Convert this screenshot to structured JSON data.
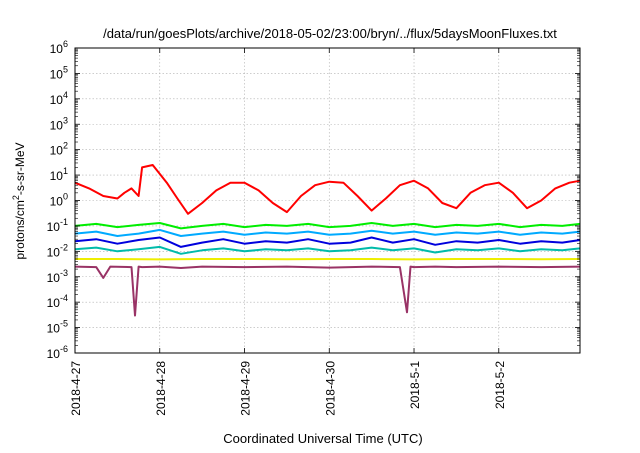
{
  "chart_data": {
    "type": "line",
    "title": "/data/run/goesPlots/archive/2018-05-02/23:00/bryn/../flux/5daysMoonFluxes.txt",
    "xlabel": "Coordinated Universal Time (UTC)",
    "ylabel": {
      "prefix": "protons/cm",
      "sup": "2",
      "suffix": "-s-sr-MeV"
    },
    "yscale": "log",
    "ylim": [
      1e-06,
      1000000.0
    ],
    "y_tick_exponents": [
      -6,
      -5,
      -4,
      -3,
      -2,
      -1,
      0,
      1,
      2,
      3,
      4,
      5,
      6
    ],
    "xlim": [
      "2018-04-27T00:00",
      "2018-05-02T23:00"
    ],
    "x_tick_labels": [
      "2018-4-27",
      "2018-4-28",
      "2018-4-29",
      "2018-4-30",
      "2018-5-1",
      "2018-5-2"
    ],
    "grid": true,
    "series": [
      {
        "color": "#ff0000",
        "x": [
          "2018-04-27T00:00",
          "2018-04-27T04:00",
          "2018-04-27T08:00",
          "2018-04-27T12:00",
          "2018-04-27T14:00",
          "2018-04-27T16:00",
          "2018-04-27T18:00",
          "2018-04-27T19:00",
          "2018-04-27T22:00",
          "2018-04-28T02:00",
          "2018-04-28T05:00",
          "2018-04-28T08:00",
          "2018-04-28T12:00",
          "2018-04-28T16:00",
          "2018-04-28T20:00",
          "2018-04-29T00:00",
          "2018-04-29T04:00",
          "2018-04-29T08:00",
          "2018-04-29T12:00",
          "2018-04-29T16:00",
          "2018-04-29T20:00",
          "2018-04-30T00:00",
          "2018-04-30T04:00",
          "2018-04-30T08:00",
          "2018-04-30T12:00",
          "2018-04-30T16:00",
          "2018-04-30T20:00",
          "2018-05-01T00:00",
          "2018-05-01T04:00",
          "2018-05-01T08:00",
          "2018-05-01T12:00",
          "2018-05-01T16:00",
          "2018-05-01T20:00",
          "2018-05-02T00:00",
          "2018-05-02T04:00",
          "2018-05-02T08:00",
          "2018-05-02T12:00",
          "2018-05-02T16:00",
          "2018-05-02T20:00",
          "2018-05-02T23:00"
        ],
        "values": [
          5,
          3,
          1.5,
          1.2,
          2,
          3,
          1.5,
          20,
          25,
          5,
          1.2,
          0.3,
          0.8,
          2.5,
          5,
          5,
          2.5,
          0.8,
          0.35,
          1.5,
          4,
          5.5,
          5,
          1.5,
          0.4,
          1.2,
          4,
          6,
          3,
          0.8,
          0.5,
          2,
          4,
          5,
          2,
          0.5,
          1,
          3,
          5,
          6
        ]
      },
      {
        "color": "#00ee00",
        "x": [
          "2018-04-27T00:00",
          "2018-04-27T06:00",
          "2018-04-27T12:00",
          "2018-04-27T18:00",
          "2018-04-28T00:00",
          "2018-04-28T06:00",
          "2018-04-28T12:00",
          "2018-04-28T18:00",
          "2018-04-29T00:00",
          "2018-04-29T06:00",
          "2018-04-29T12:00",
          "2018-04-29T18:00",
          "2018-04-30T00:00",
          "2018-04-30T06:00",
          "2018-04-30T12:00",
          "2018-04-30T18:00",
          "2018-05-01T00:00",
          "2018-05-01T06:00",
          "2018-05-01T12:00",
          "2018-05-01T18:00",
          "2018-05-02T00:00",
          "2018-05-02T06:00",
          "2018-05-02T12:00",
          "2018-05-02T18:00",
          "2018-05-02T23:00"
        ],
        "values": [
          0.1,
          0.12,
          0.09,
          0.11,
          0.13,
          0.08,
          0.1,
          0.12,
          0.09,
          0.11,
          0.1,
          0.12,
          0.09,
          0.1,
          0.13,
          0.1,
          0.12,
          0.09,
          0.11,
          0.1,
          0.12,
          0.09,
          0.11,
          0.1,
          0.12
        ]
      },
      {
        "color": "#00aaff",
        "x": [
          "2018-04-27T00:00",
          "2018-04-27T06:00",
          "2018-04-27T12:00",
          "2018-04-27T18:00",
          "2018-04-28T00:00",
          "2018-04-28T06:00",
          "2018-04-28T12:00",
          "2018-04-28T18:00",
          "2018-04-29T00:00",
          "2018-04-29T06:00",
          "2018-04-29T12:00",
          "2018-04-29T18:00",
          "2018-04-30T00:00",
          "2018-04-30T06:00",
          "2018-04-30T12:00",
          "2018-04-30T18:00",
          "2018-05-01T00:00",
          "2018-05-01T06:00",
          "2018-05-01T12:00",
          "2018-05-01T18:00",
          "2018-05-02T00:00",
          "2018-05-02T06:00",
          "2018-05-02T12:00",
          "2018-05-02T18:00",
          "2018-05-02T23:00"
        ],
        "values": [
          0.05,
          0.06,
          0.04,
          0.05,
          0.07,
          0.04,
          0.05,
          0.06,
          0.045,
          0.055,
          0.05,
          0.06,
          0.045,
          0.05,
          0.065,
          0.05,
          0.06,
          0.045,
          0.055,
          0.05,
          0.06,
          0.045,
          0.055,
          0.05,
          0.06
        ]
      },
      {
        "color": "#0000dd",
        "x": [
          "2018-04-27T00:00",
          "2018-04-27T06:00",
          "2018-04-27T12:00",
          "2018-04-27T18:00",
          "2018-04-28T00:00",
          "2018-04-28T06:00",
          "2018-04-28T12:00",
          "2018-04-28T18:00",
          "2018-04-29T00:00",
          "2018-04-29T06:00",
          "2018-04-29T12:00",
          "2018-04-29T18:00",
          "2018-04-30T00:00",
          "2018-04-30T06:00",
          "2018-04-30T12:00",
          "2018-04-30T18:00",
          "2018-05-01T00:00",
          "2018-05-01T06:00",
          "2018-05-01T12:00",
          "2018-05-01T18:00",
          "2018-05-02T00:00",
          "2018-05-02T06:00",
          "2018-05-02T12:00",
          "2018-05-02T18:00",
          "2018-05-02T23:00"
        ],
        "values": [
          0.025,
          0.03,
          0.02,
          0.028,
          0.035,
          0.015,
          0.022,
          0.03,
          0.02,
          0.025,
          0.022,
          0.03,
          0.02,
          0.022,
          0.035,
          0.022,
          0.03,
          0.018,
          0.025,
          0.022,
          0.028,
          0.02,
          0.025,
          0.022,
          0.028
        ]
      },
      {
        "color": "#00bbaa",
        "x": [
          "2018-04-27T00:00",
          "2018-04-27T06:00",
          "2018-04-27T12:00",
          "2018-04-27T18:00",
          "2018-04-28T00:00",
          "2018-04-28T06:00",
          "2018-04-28T12:00",
          "2018-04-28T18:00",
          "2018-04-29T00:00",
          "2018-04-29T06:00",
          "2018-04-29T12:00",
          "2018-04-29T18:00",
          "2018-04-30T00:00",
          "2018-04-30T06:00",
          "2018-04-30T12:00",
          "2018-04-30T18:00",
          "2018-05-01T00:00",
          "2018-05-01T06:00",
          "2018-05-01T12:00",
          "2018-05-01T18:00",
          "2018-05-02T00:00",
          "2018-05-02T06:00",
          "2018-05-02T12:00",
          "2018-05-02T18:00",
          "2018-05-02T23:00"
        ],
        "values": [
          0.012,
          0.014,
          0.01,
          0.012,
          0.015,
          0.008,
          0.011,
          0.013,
          0.01,
          0.012,
          0.011,
          0.013,
          0.01,
          0.011,
          0.014,
          0.011,
          0.013,
          0.009,
          0.012,
          0.011,
          0.013,
          0.01,
          0.012,
          0.011,
          0.013
        ]
      },
      {
        "color": "#eeee00",
        "x": [
          "2018-04-27T00:00",
          "2018-04-27T12:00",
          "2018-04-28T00:00",
          "2018-04-28T12:00",
          "2018-04-29T00:00",
          "2018-04-29T12:00",
          "2018-04-30T00:00",
          "2018-04-30T12:00",
          "2018-05-01T00:00",
          "2018-05-01T12:00",
          "2018-05-02T00:00",
          "2018-05-02T12:00",
          "2018-05-02T23:00"
        ],
        "values": [
          0.005,
          0.005,
          0.0048,
          0.005,
          0.005,
          0.0049,
          0.005,
          0.005,
          0.0048,
          0.005,
          0.005,
          0.0049,
          0.005
        ]
      },
      {
        "color": "#993366",
        "x": [
          "2018-04-27T00:00",
          "2018-04-27T06:00",
          "2018-04-27T08:00",
          "2018-04-27T10:00",
          "2018-04-27T16:00",
          "2018-04-27T17:00",
          "2018-04-27T18:00",
          "2018-04-27T19:00",
          "2018-04-28T00:00",
          "2018-04-28T06:00",
          "2018-04-28T12:00",
          "2018-04-29T00:00",
          "2018-04-29T12:00",
          "2018-04-30T00:00",
          "2018-04-30T12:00",
          "2018-04-30T20:00",
          "2018-04-30T22:00",
          "2018-04-30T23:00",
          "2018-05-01T00:00",
          "2018-05-01T06:00",
          "2018-05-01T12:00",
          "2018-05-02T00:00",
          "2018-05-02T12:00",
          "2018-05-02T23:00"
        ],
        "values": [
          0.0025,
          0.0024,
          0.0009,
          0.0025,
          0.0024,
          3e-05,
          0.0025,
          0.0024,
          0.0025,
          0.0022,
          0.0025,
          0.0024,
          0.0025,
          0.0023,
          0.0025,
          0.0024,
          4e-05,
          0.0025,
          0.0024,
          0.0025,
          0.0024,
          0.0025,
          0.0024,
          0.0025
        ]
      }
    ]
  }
}
